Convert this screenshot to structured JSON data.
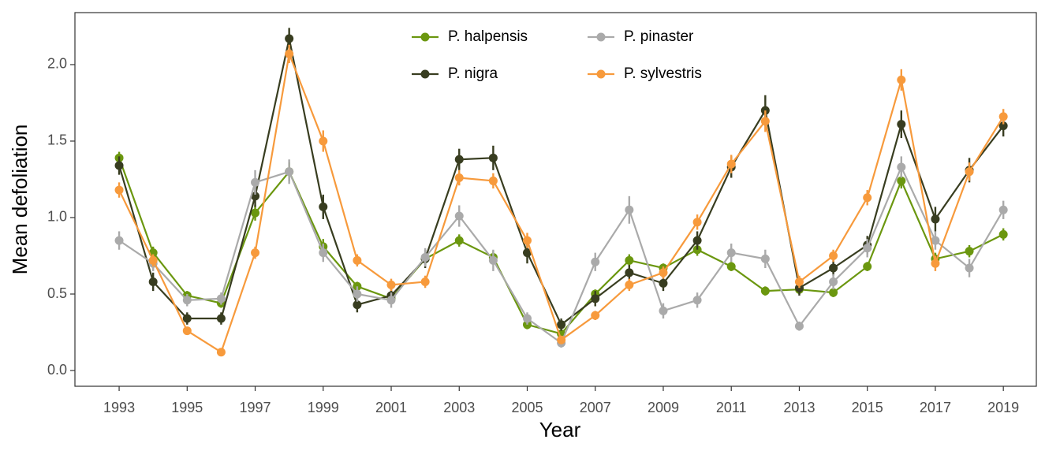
{
  "chart_data": {
    "type": "line",
    "x_label": "Year",
    "y_label": "Mean defoliation",
    "x": [
      1993,
      1994,
      1995,
      1996,
      1997,
      1998,
      1999,
      2000,
      2001,
      2002,
      2003,
      2004,
      2005,
      2006,
      2007,
      2008,
      2009,
      2010,
      2011,
      2012,
      2013,
      2014,
      2015,
      2016,
      2017,
      2018,
      2019
    ],
    "series": [
      {
        "name": "P. halpensis",
        "color": "#6b970f",
        "values": [
          1.39,
          0.77,
          0.49,
          0.44,
          1.03,
          1.3,
          0.81,
          0.55,
          0.47,
          0.73,
          0.85,
          0.74,
          0.3,
          0.24,
          0.5,
          0.72,
          0.67,
          0.79,
          0.68,
          0.52,
          0.53,
          0.51,
          0.68,
          1.24,
          0.73,
          0.78,
          0.89
        ],
        "errors": [
          0.04,
          0.04,
          0.03,
          0.03,
          0.05,
          0.06,
          0.05,
          0.03,
          0.03,
          0.04,
          0.04,
          0.04,
          0.03,
          0.02,
          0.03,
          0.04,
          0.03,
          0.04,
          0.03,
          0.03,
          0.03,
          0.03,
          0.03,
          0.05,
          0.04,
          0.04,
          0.04
        ]
      },
      {
        "name": "P. nigra",
        "color": "#383d20",
        "values": [
          1.34,
          0.58,
          0.34,
          0.34,
          1.14,
          2.17,
          1.07,
          0.43,
          0.49,
          0.73,
          1.38,
          1.39,
          0.77,
          0.3,
          0.47,
          0.64,
          0.57,
          0.85,
          1.33,
          1.7,
          0.54,
          0.67,
          0.82,
          1.61,
          0.99,
          1.31,
          1.6
        ],
        "errors": [
          0.06,
          0.06,
          0.04,
          0.04,
          0.07,
          0.07,
          0.08,
          0.05,
          0.05,
          0.06,
          0.07,
          0.08,
          0.07,
          0.04,
          0.05,
          0.05,
          0.05,
          0.06,
          0.07,
          0.1,
          0.05,
          0.05,
          0.06,
          0.09,
          0.08,
          0.08,
          0.07
        ]
      },
      {
        "name": "P. pinaster",
        "color": "#aaaaaa",
        "values": [
          0.85,
          0.7,
          0.46,
          0.47,
          1.23,
          1.3,
          0.77,
          0.5,
          0.46,
          0.74,
          1.01,
          0.72,
          0.34,
          0.18,
          0.71,
          1.05,
          0.39,
          0.46,
          0.77,
          0.73,
          0.29,
          0.58,
          0.8,
          1.33,
          0.85,
          0.67,
          1.05
        ],
        "errors": [
          0.06,
          0.05,
          0.04,
          0.04,
          0.08,
          0.08,
          0.06,
          0.05,
          0.05,
          0.06,
          0.07,
          0.07,
          0.04,
          0.03,
          0.06,
          0.09,
          0.05,
          0.05,
          0.06,
          0.06,
          0.03,
          0.05,
          0.06,
          0.07,
          0.06,
          0.06,
          0.06
        ]
      },
      {
        "name": "P. sylvestris",
        "color": "#f79a3c",
        "values": [
          1.18,
          0.72,
          0.26,
          0.12,
          0.77,
          2.07,
          1.5,
          0.72,
          0.56,
          0.58,
          1.26,
          1.24,
          0.85,
          0.2,
          0.36,
          0.56,
          0.64,
          0.97,
          1.35,
          1.63,
          0.58,
          0.75,
          1.13,
          1.9,
          0.7,
          1.3,
          1.66
        ],
        "errors": [
          0.05,
          0.04,
          0.02,
          0.02,
          0.04,
          0.06,
          0.07,
          0.04,
          0.04,
          0.04,
          0.05,
          0.05,
          0.05,
          0.02,
          0.03,
          0.04,
          0.04,
          0.05,
          0.06,
          0.07,
          0.04,
          0.04,
          0.05,
          0.07,
          0.05,
          0.06,
          0.05
        ]
      }
    ],
    "xlim": [
      1991.7,
      2019.97
    ],
    "ylim": [
      -0.103,
      2.34
    ],
    "xticks": [
      1993,
      1995,
      1997,
      1999,
      2001,
      2003,
      2005,
      2007,
      2009,
      2011,
      2013,
      2015,
      2017,
      2019
    ],
    "yticks": [
      {
        "value": 0,
        "label": "0.0"
      },
      0.5,
      {
        "value": 1,
        "label": "1.0"
      },
      1.5,
      {
        "value": 2,
        "label": "2.0"
      }
    ],
    "grid": false,
    "legend": "top"
  }
}
